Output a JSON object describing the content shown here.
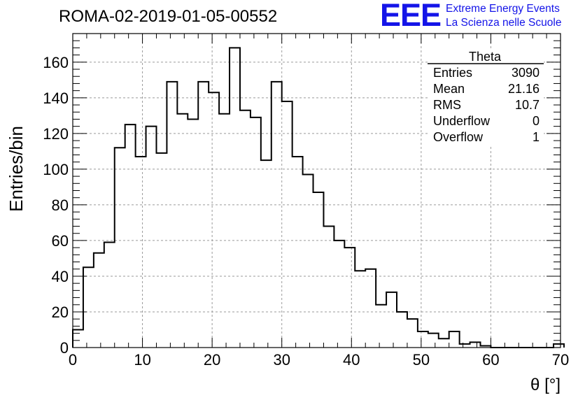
{
  "header": {
    "title": "ROMA-02-2019-01-05-00552",
    "logo_text": "EEE",
    "logo_line1": "Extreme Energy Events",
    "logo_line2": "La Scienza nelle Scuole"
  },
  "stats": {
    "name": "Theta",
    "rows": [
      {
        "label": "Entries",
        "value": "3090"
      },
      {
        "label": "Mean",
        "value": "21.16"
      },
      {
        "label": "RMS",
        "value": "10.7"
      },
      {
        "label": "Underflow",
        "value": "0"
      },
      {
        "label": "Overflow",
        "value": "1"
      }
    ]
  },
  "colors": {
    "logo": "#1414e8",
    "line": "#000000",
    "grid": "#9a9a9a"
  },
  "chart_data": {
    "type": "histogram",
    "title": "ROMA-02-2019-01-05-00552",
    "xlabel": "θ [°]",
    "ylabel": "Entries/bin",
    "xlim": [
      0,
      70
    ],
    "ylim": [
      0,
      176
    ],
    "bin_width": 1.5,
    "x_ticks": [
      0,
      10,
      20,
      30,
      40,
      50,
      60,
      70
    ],
    "x_tick_labels": [
      "0",
      "10",
      "20",
      "30",
      "40",
      "50",
      "60",
      "70"
    ],
    "y_ticks": [
      0,
      20,
      40,
      60,
      80,
      100,
      120,
      140,
      160
    ],
    "y_tick_labels": [
      "0",
      "20",
      "40",
      "60",
      "80",
      "100",
      "120",
      "140",
      "160"
    ],
    "grid": true,
    "legend": "top-right stats box",
    "values": [
      10,
      45,
      53,
      59,
      112,
      125,
      107,
      124,
      109,
      149,
      131,
      128,
      149,
      143,
      131,
      168,
      133,
      129,
      105,
      149,
      138,
      107,
      97,
      87,
      68,
      60,
      56,
      43,
      44,
      24,
      31,
      20,
      16,
      9,
      8,
      5,
      9,
      2,
      3,
      1,
      0,
      0,
      0,
      0,
      0,
      0,
      2
    ]
  }
}
